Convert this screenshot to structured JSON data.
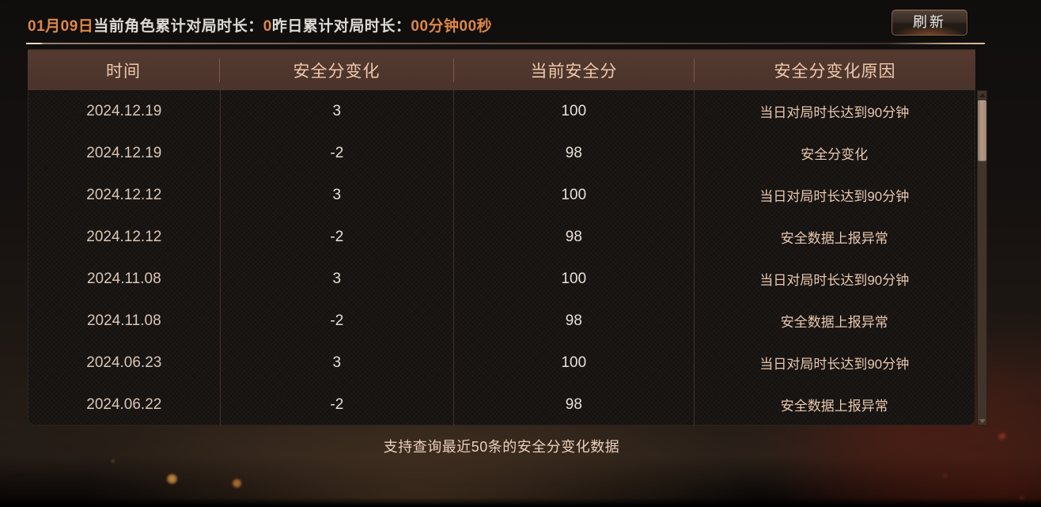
{
  "top_bar": {
    "date": "01月09日",
    "today_label": "当前角色累计对局时长：",
    "today_value": "0",
    "yesterday_label": "昨日累计对局时长：",
    "yesterday_value": "00分钟00秒",
    "refresh_label": "刷新"
  },
  "table": {
    "headers": [
      "时间",
      "安全分变化",
      "当前安全分",
      "安全分变化原因"
    ],
    "rows": [
      {
        "date": "2024.12.19",
        "change": "3",
        "score": "100",
        "reason": "当日对局时长达到90分钟"
      },
      {
        "date": "2024.12.19",
        "change": "-2",
        "score": "98",
        "reason": "安全分变化"
      },
      {
        "date": "2024.12.12",
        "change": "3",
        "score": "100",
        "reason": "当日对局时长达到90分钟"
      },
      {
        "date": "2024.12.12",
        "change": "-2",
        "score": "98",
        "reason": "安全数据上报异常"
      },
      {
        "date": "2024.11.08",
        "change": "3",
        "score": "100",
        "reason": "当日对局时长达到90分钟"
      },
      {
        "date": "2024.11.08",
        "change": "-2",
        "score": "98",
        "reason": "安全数据上报异常"
      },
      {
        "date": "2024.06.23",
        "change": "3",
        "score": "100",
        "reason": "当日对局时长达到90分钟"
      },
      {
        "date": "2024.06.22",
        "change": "-2",
        "score": "98",
        "reason": "安全数据上报异常"
      }
    ]
  },
  "footer": {
    "note": "支持查询最近50条的安全分变化数据"
  },
  "colors": {
    "accent_orange": "#dd8746",
    "header_background": "#4e352c",
    "header_text": "#edc9ad",
    "body_background": "#151210",
    "row_text_light": "#e9e0d8",
    "row_text_warm": "#e9c8ae",
    "scrollbar_thumb": "#a8917e",
    "button_border": "#7d604b"
  }
}
